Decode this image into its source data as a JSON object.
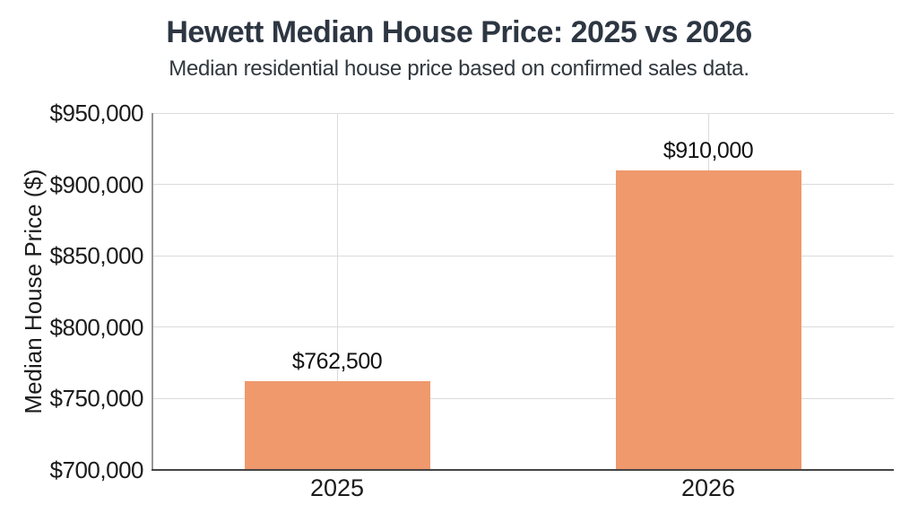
{
  "chart_data": {
    "type": "bar",
    "title": "Hewett Median House Price: 2025 vs 2026",
    "subtitle": "Median residential house price based on confirmed sales data.",
    "categories": [
      "2025",
      "2026"
    ],
    "values": [
      762500,
      910000
    ],
    "value_labels": [
      "$762,500",
      "$910,000"
    ],
    "xlabel": "",
    "ylabel": "Median House Price ($)",
    "ylim": [
      700000,
      950000
    ],
    "ytick_step": 50000,
    "ytick_labels": [
      "$700,000",
      "$750,000",
      "$800,000",
      "$850,000",
      "$900,000",
      "$950,000"
    ],
    "grid": true,
    "legend": false,
    "bar_color": "#EF996D"
  }
}
